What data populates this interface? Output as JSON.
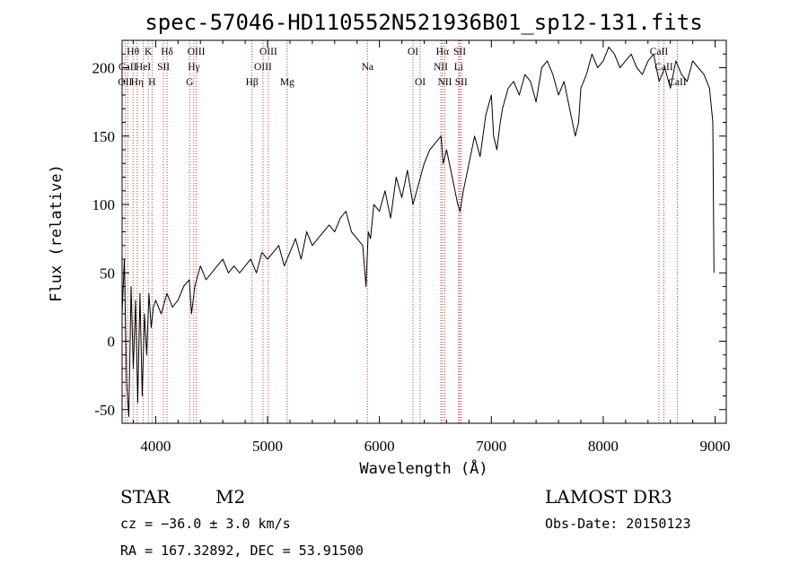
{
  "chart_data": {
    "type": "line",
    "title": "spec-57046-HD110552N521936B01_sp12-131.fits",
    "xlabel": "Wavelength (Å)",
    "ylabel": "Flux (relative)",
    "xlim": [
      3700,
      9100
    ],
    "ylim": [
      -60,
      220
    ],
    "x_ticks": [
      4000,
      5000,
      6000,
      7000,
      8000,
      9000
    ],
    "y_ticks": [
      -50,
      0,
      50,
      100,
      150,
      200
    ],
    "series": [
      {
        "name": "flux",
        "x": [
          3700,
          3720,
          3740,
          3760,
          3780,
          3800,
          3820,
          3840,
          3860,
          3880,
          3900,
          3920,
          3940,
          3960,
          3980,
          4000,
          4050,
          4100,
          4150,
          4200,
          4250,
          4300,
          4320,
          4350,
          4400,
          4450,
          4500,
          4550,
          4600,
          4650,
          4700,
          4750,
          4800,
          4850,
          4900,
          4950,
          5000,
          5050,
          5100,
          5150,
          5200,
          5250,
          5300,
          5350,
          5400,
          5450,
          5500,
          5550,
          5600,
          5650,
          5700,
          5750,
          5800,
          5850,
          5880,
          5890,
          5900,
          5920,
          5950,
          6000,
          6050,
          6100,
          6150,
          6200,
          6250,
          6300,
          6350,
          6400,
          6450,
          6500,
          6550,
          6570,
          6600,
          6650,
          6700,
          6720,
          6750,
          6800,
          6850,
          6900,
          6950,
          7000,
          7020,
          7050,
          7080,
          7100,
          7150,
          7200,
          7250,
          7300,
          7350,
          7400,
          7450,
          7500,
          7550,
          7600,
          7650,
          7700,
          7750,
          7780,
          7800,
          7850,
          7900,
          7950,
          8000,
          8050,
          8100,
          8150,
          8200,
          8250,
          8300,
          8350,
          8400,
          8450,
          8500,
          8550,
          8600,
          8650,
          8700,
          8750,
          8800,
          8850,
          8900,
          8950,
          8980,
          8990
        ],
        "y": [
          20,
          60,
          -30,
          -55,
          40,
          -20,
          30,
          -45,
          35,
          -40,
          20,
          -10,
          35,
          10,
          25,
          30,
          20,
          35,
          25,
          30,
          40,
          45,
          20,
          40,
          55,
          45,
          50,
          55,
          60,
          50,
          55,
          50,
          55,
          60,
          50,
          65,
          60,
          65,
          70,
          55,
          65,
          75,
          60,
          80,
          70,
          75,
          80,
          85,
          80,
          90,
          95,
          80,
          75,
          70,
          40,
          60,
          80,
          75,
          100,
          95,
          110,
          90,
          120,
          105,
          125,
          100,
          115,
          130,
          140,
          145,
          150,
          130,
          140,
          120,
          100,
          95,
          110,
          130,
          150,
          135,
          165,
          180,
          150,
          140,
          160,
          170,
          185,
          190,
          180,
          195,
          190,
          175,
          200,
          205,
          195,
          180,
          190,
          170,
          150,
          160,
          185,
          195,
          210,
          200,
          205,
          215,
          210,
          200,
          205,
          210,
          200,
          195,
          205,
          210,
          190,
          200,
          185,
          205,
          195,
          190,
          205,
          200,
          195,
          185,
          160,
          50
        ]
      }
    ],
    "spectral_lines": [
      {
        "label": "Hθ",
        "x": 3798,
        "row": 1
      },
      {
        "label": "OII",
        "x": 3727,
        "row": 3
      },
      {
        "label": "CaII",
        "x": 3750,
        "row": 2
      },
      {
        "label": "Hη",
        "x": 3835,
        "row": 3
      },
      {
        "label": "HeI",
        "x": 3889,
        "row": 2
      },
      {
        "label": "K",
        "x": 3934,
        "row": 1
      },
      {
        "label": "H",
        "x": 3968,
        "row": 3
      },
      {
        "label": "SII",
        "x": 4070,
        "row": 2
      },
      {
        "label": "Hδ",
        "x": 4102,
        "row": 1
      },
      {
        "label": "G",
        "x": 4304,
        "row": 3
      },
      {
        "label": "Hγ",
        "x": 4341,
        "row": 2
      },
      {
        "label": "OIII",
        "x": 4363,
        "row": 1
      },
      {
        "label": "Hβ",
        "x": 4861,
        "row": 3
      },
      {
        "label": "OIII",
        "x": 4959,
        "row": 2
      },
      {
        "label": "OIII",
        "x": 5007,
        "row": 1
      },
      {
        "label": "Mg",
        "x": 5175,
        "row": 3
      },
      {
        "label": "Na",
        "x": 5893,
        "row": 2
      },
      {
        "label": "OI",
        "x": 6300,
        "row": 1
      },
      {
        "label": "OI",
        "x": 6364,
        "row": 3
      },
      {
        "label": "Hα",
        "x": 6563,
        "row": 1
      },
      {
        "label": "NII",
        "x": 6548,
        "row": 2
      },
      {
        "label": "NII",
        "x": 6584,
        "row": 3
      },
      {
        "label": "Li",
        "x": 6708,
        "row": 2
      },
      {
        "label": "SII",
        "x": 6717,
        "row": 1
      },
      {
        "label": "SII",
        "x": 6731,
        "row": 3
      },
      {
        "label": "CaII",
        "x": 8498,
        "row": 1
      },
      {
        "label": "CaII",
        "x": 8542,
        "row": 2
      },
      {
        "label": "CaII",
        "x": 8662,
        "row": 3
      }
    ]
  },
  "info": {
    "object_class": "STAR",
    "subclass": "M2",
    "survey": "LAMOST DR3",
    "redshift": "cz = −36.0 ± 3.0 km/s",
    "obs_date": "Obs-Date: 20150123",
    "coords": "RA = 167.32892, DEC =  53.91500"
  }
}
